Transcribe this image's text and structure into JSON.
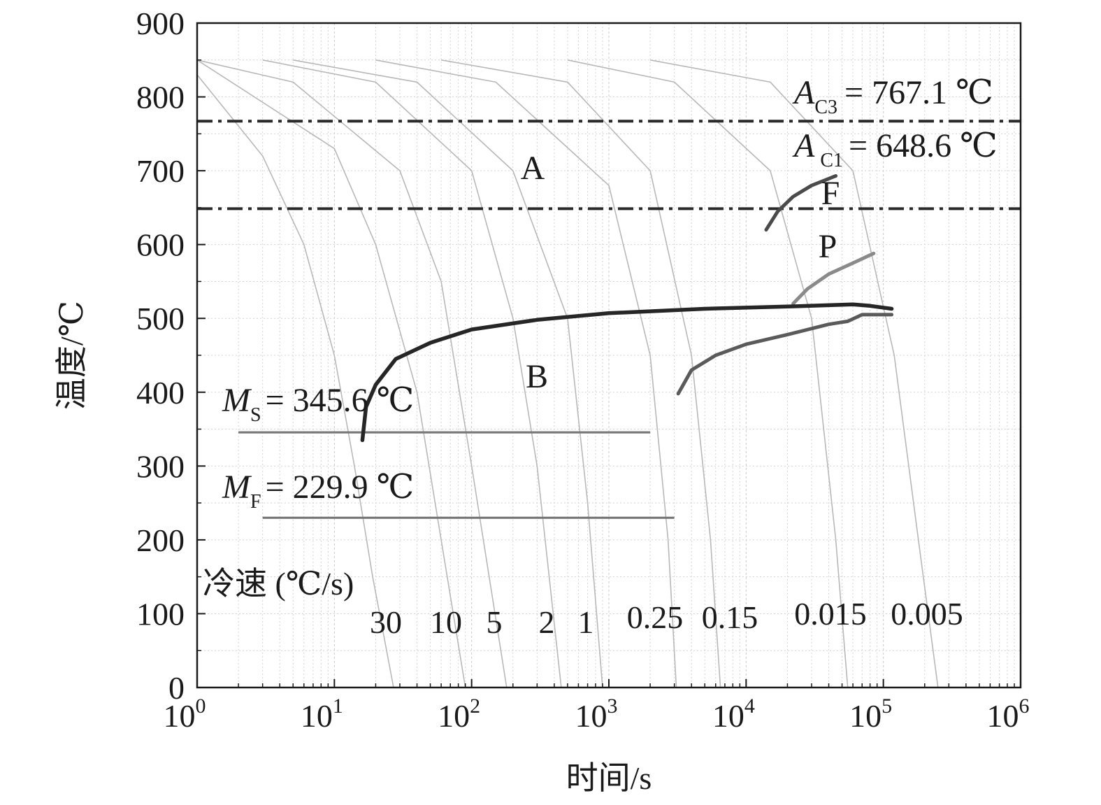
{
  "chart_data": {
    "type": "line",
    "xlabel": "时间/s",
    "ylabel": "温度/℃",
    "xscale": "log",
    "xlim": [
      1,
      1000000
    ],
    "ylim": [
      0,
      900
    ],
    "grid": true,
    "x_ticks": [
      {
        "base": "10",
        "exp": "0"
      },
      {
        "base": "10",
        "exp": "1"
      },
      {
        "base": "10",
        "exp": "2"
      },
      {
        "base": "10",
        "exp": "3"
      },
      {
        "base": "10",
        "exp": "4"
      },
      {
        "base": "10",
        "exp": "5"
      },
      {
        "base": "10",
        "exp": "6"
      }
    ],
    "y_ticks": [
      "0",
      "100",
      "200",
      "300",
      "400",
      "500",
      "600",
      "700",
      "800",
      "900"
    ],
    "critical_temperatures": [
      {
        "symbol": "A",
        "subscript": "C3",
        "text": "= 767.1 ℃",
        "value": 767.1,
        "style": "dash-dot",
        "x_range": [
          1,
          1000000
        ]
      },
      {
        "symbol": "A",
        "subscript": "C1",
        "text": "= 648.6 ℃",
        "value": 648.6,
        "style": "dash-dot",
        "x_range": [
          1,
          1000000
        ]
      },
      {
        "symbol": "M",
        "subscript": "S",
        "text": "= 345.6 ℃",
        "value": 345.6,
        "style": "solid",
        "x_range": [
          2,
          2000
        ]
      },
      {
        "symbol": "M",
        "subscript": "F",
        "text": "= 229.9 ℃",
        "value": 229.9,
        "style": "solid",
        "x_range": [
          3,
          3000
        ]
      }
    ],
    "region_labels": [
      "A",
      "B",
      "F",
      "P"
    ],
    "cooling_rate_title": "冷速 (℃/s)",
    "cooling_curves": [
      {
        "rate": "30",
        "points": [
          [
            1,
            830
          ],
          [
            3,
            720
          ],
          [
            6,
            600
          ],
          [
            10,
            450
          ],
          [
            14,
            300
          ],
          [
            19,
            150
          ],
          [
            27,
            0
          ]
        ]
      },
      {
        "rate": "10",
        "points": [
          [
            1,
            850
          ],
          [
            10,
            730
          ],
          [
            20,
            600
          ],
          [
            40,
            400
          ],
          [
            60,
            200
          ],
          [
            90,
            0
          ]
        ]
      },
      {
        "rate": "5",
        "points": [
          [
            1,
            850
          ],
          [
            5,
            820
          ],
          [
            30,
            700
          ],
          [
            60,
            550
          ],
          [
            100,
            300
          ],
          [
            180,
            0
          ]
        ]
      },
      {
        "rate": "2",
        "points": [
          [
            3,
            850
          ],
          [
            20,
            820
          ],
          [
            100,
            700
          ],
          [
            200,
            500
          ],
          [
            300,
            300
          ],
          [
            450,
            0
          ]
        ]
      },
      {
        "rate": "1",
        "points": [
          [
            5,
            850
          ],
          [
            40,
            820
          ],
          [
            200,
            700
          ],
          [
            500,
            500
          ],
          [
            700,
            250
          ],
          [
            900,
            0
          ]
        ]
      },
      {
        "rate": "0.25",
        "points": [
          [
            20,
            850
          ],
          [
            150,
            820
          ],
          [
            1000,
            680
          ],
          [
            2000,
            450
          ],
          [
            2700,
            200
          ],
          [
            3100,
            0
          ]
        ]
      },
      {
        "rate": "0.15",
        "points": [
          [
            60,
            850
          ],
          [
            500,
            820
          ],
          [
            2000,
            700
          ],
          [
            4000,
            450
          ],
          [
            5500,
            200
          ],
          [
            6500,
            0
          ]
        ]
      },
      {
        "rate": "0.015",
        "points": [
          [
            500,
            850
          ],
          [
            3000,
            820
          ],
          [
            15000,
            700
          ],
          [
            30000,
            500
          ],
          [
            45000,
            200
          ],
          [
            55000,
            0
          ]
        ]
      },
      {
        "rate": "0.005",
        "points": [
          [
            2000,
            850
          ],
          [
            15000,
            820
          ],
          [
            60000,
            700
          ],
          [
            120000,
            450
          ],
          [
            180000,
            200
          ],
          [
            250000,
            0
          ]
        ]
      }
    ],
    "transformation_curves": [
      {
        "name": "F",
        "points": [
          [
            14000,
            620
          ],
          [
            17000,
            645
          ],
          [
            22000,
            665
          ],
          [
            30000,
            680
          ],
          [
            45000,
            693
          ]
        ]
      },
      {
        "name": "P",
        "points": [
          [
            22000,
            520
          ],
          [
            28000,
            540
          ],
          [
            40000,
            560
          ],
          [
            60000,
            575
          ],
          [
            85000,
            588
          ]
        ]
      },
      {
        "name": "B-start",
        "points": [
          [
            16,
            335
          ],
          [
            17,
            380
          ],
          [
            20,
            410
          ],
          [
            28,
            445
          ],
          [
            50,
            467
          ],
          [
            100,
            485
          ],
          [
            300,
            498
          ],
          [
            1000,
            507
          ],
          [
            5000,
            513
          ],
          [
            20000,
            516
          ],
          [
            60000,
            519
          ],
          [
            80000,
            517
          ],
          [
            115000,
            513
          ]
        ]
      },
      {
        "name": "B-finish",
        "points": [
          [
            3200,
            398
          ],
          [
            4000,
            430
          ],
          [
            6000,
            450
          ],
          [
            10000,
            465
          ],
          [
            20000,
            478
          ],
          [
            40000,
            492
          ],
          [
            55000,
            496
          ],
          [
            70000,
            505
          ],
          [
            115000,
            505
          ]
        ]
      }
    ]
  }
}
